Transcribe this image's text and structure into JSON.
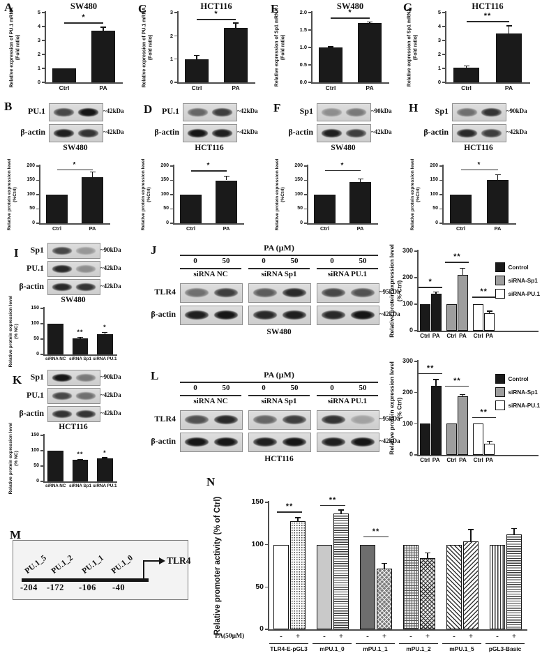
{
  "letters": {
    "A": "A",
    "B": "B",
    "C": "C",
    "D": "D",
    "E": "E",
    "F": "F",
    "G": "G",
    "H": "H",
    "I": "I",
    "J": "J",
    "K": "K",
    "L": "L",
    "M": "M",
    "N": "N"
  },
  "chart_data": [
    {
      "id": "A",
      "type": "bar",
      "title": "SW480",
      "ylabel": [
        "Relative expression of PU.1 mRNA",
        "(Fold ratio)"
      ],
      "ymax": 5,
      "yticks": [
        "0",
        "1",
        "2",
        "3",
        "4",
        "5"
      ],
      "categories": [
        "Ctrl",
        "PA"
      ],
      "values": [
        1.0,
        3.7
      ],
      "errors": [
        0,
        0.25
      ],
      "sig": {
        "text": "*",
        "y": 4.3
      }
    },
    {
      "id": "C",
      "type": "bar",
      "title": "HCT116",
      "ylabel": [
        "Relative expression of PU.1 mRNA",
        "(Fold ratio)"
      ],
      "ymax": 3,
      "yticks": [
        "0",
        "1",
        "2",
        "3"
      ],
      "categories": [
        "Ctrl",
        "PA"
      ],
      "values": [
        1.0,
        2.35
      ],
      "errors": [
        0.15,
        0.2
      ],
      "sig": {
        "text": "*",
        "y": 2.72
      }
    },
    {
      "id": "E",
      "type": "bar",
      "title": "SW480",
      "ylabel": [
        "Relative expression of Sp1 mRNA",
        "(Fold ratio)"
      ],
      "ymax": 2,
      "yticks": [
        "0.0",
        "0.5",
        "1.0",
        "1.5",
        "2.0"
      ],
      "categories": [
        "Ctrl",
        "PA"
      ],
      "values": [
        1.0,
        1.7
      ],
      "errors": [
        0.02,
        0.03
      ],
      "sig": {
        "text": "*",
        "y": 1.86
      }
    },
    {
      "id": "G",
      "type": "bar",
      "title": "HCT116",
      "ylabel": [
        "Relative expression of Sp1 mRNA",
        "(Fold ratio)"
      ],
      "ymax": 5,
      "yticks": [
        "0",
        "1",
        "2",
        "3",
        "4",
        "5"
      ],
      "categories": [
        "Ctrl",
        "PA"
      ],
      "values": [
        1.05,
        3.5
      ],
      "errors": [
        0.12,
        0.55
      ],
      "sig": {
        "text": "**",
        "y": 4.4
      }
    },
    {
      "id": "B",
      "type": "bar",
      "title": null,
      "ylabel": [
        "Relative protein expression level",
        "(%Ctrl)"
      ],
      "ymax": 200,
      "yticks": [
        "0",
        "50",
        "100",
        "150",
        "200"
      ],
      "categories": [
        "Ctrl",
        "PA"
      ],
      "values": [
        100,
        160
      ],
      "errors": [
        0,
        20
      ],
      "sig": {
        "text": "*",
        "y": 188
      }
    },
    {
      "id": "D",
      "type": "bar",
      "title": null,
      "ylabel": [
        "Relative protein expression level",
        "(%Ctrl)"
      ],
      "ymax": 200,
      "yticks": [
        "0",
        "50",
        "100",
        "150",
        "200"
      ],
      "categories": [
        "Ctrl",
        "PA"
      ],
      "values": [
        100,
        150
      ],
      "errors": [
        0,
        15
      ],
      "sig": {
        "text": "*",
        "y": 185
      }
    },
    {
      "id": "F",
      "type": "bar",
      "title": null,
      "ylabel": [
        "Relative protein expression level",
        "(%Ctrl)"
      ],
      "ymax": 200,
      "yticks": [
        "0",
        "50",
        "100",
        "150",
        "200"
      ],
      "categories": [
        "Ctrl",
        "PA"
      ],
      "values": [
        100,
        143
      ],
      "errors": [
        0,
        12
      ],
      "sig": {
        "text": "*",
        "y": 186
      }
    },
    {
      "id": "H",
      "type": "bar",
      "title": null,
      "ylabel": [
        "Relative protein expression level",
        "(%Ctrl)"
      ],
      "ymax": 200,
      "yticks": [
        "0",
        "50",
        "100",
        "150",
        "200"
      ],
      "categories": [
        "Ctrl",
        "PA"
      ],
      "values": [
        100,
        152
      ],
      "errors": [
        0,
        17
      ],
      "sig": {
        "text": "*",
        "y": 188
      }
    },
    {
      "id": "I",
      "type": "bar",
      "title": null,
      "ylabel": [
        "Relative protein expression level",
        "(% NC)"
      ],
      "ymax": 150,
      "yticks": [
        "0",
        "50",
        "100",
        "150"
      ],
      "categories": [
        "siRNA NC",
        "siRNA Sp1",
        "siRNA PU.1"
      ],
      "values": [
        100,
        52,
        67
      ],
      "errors": [
        0,
        4,
        5
      ],
      "sig": null,
      "stars": [
        {
          "i": 1,
          "text": "**"
        },
        {
          "i": 2,
          "text": "*"
        }
      ]
    },
    {
      "id": "K",
      "type": "bar",
      "title": null,
      "ylabel": [
        "Relative protein expression level",
        "(% NC)"
      ],
      "ymax": 150,
      "yticks": [
        "0",
        "50",
        "100",
        "150"
      ],
      "categories": [
        "siRNA NC",
        "siRNA Sp1",
        "siRNA PU.1"
      ],
      "values": [
        100,
        70,
        74
      ],
      "errors": [
        0,
        2,
        3
      ],
      "sig": null,
      "stars": [
        {
          "i": 1,
          "text": "**"
        },
        {
          "i": 2,
          "text": "*"
        }
      ]
    },
    {
      "id": "J",
      "type": "grouped_bar",
      "title": null,
      "ylabel": [
        "Relative protein expression level",
        "(% Ctrl)"
      ],
      "ymax": 300,
      "yticks": [
        "0",
        "100",
        "200",
        "300"
      ],
      "bar_labels": [
        "Ctrl",
        "PA"
      ],
      "legend": true,
      "series": [
        {
          "name": "Control",
          "color": "#1a1a1a",
          "values": [
            100,
            140
          ],
          "errors": [
            0,
            6
          ],
          "sig": {
            "text": "*",
            "y": 165
          }
        },
        {
          "name": "siRNA-Sp1",
          "color": "#9e9e9e",
          "values": [
            100,
            210
          ],
          "errors": [
            0,
            25
          ],
          "sig": {
            "text": "**",
            "y": 260
          }
        },
        {
          "name": "siRNA-PU.1",
          "color": "#ffffff",
          "values": [
            100,
            65
          ],
          "errors": [
            0,
            9
          ],
          "sig": {
            "text": "**",
            "y": 128
          }
        }
      ]
    },
    {
      "id": "L",
      "type": "grouped_bar",
      "title": null,
      "ylabel": [
        "Relative protein expression level",
        "(% Ctrl)"
      ],
      "ymax": 300,
      "yticks": [
        "0",
        "100",
        "200",
        "300"
      ],
      "bar_labels": [
        "Ctrl",
        "PA"
      ],
      "legend": true,
      "series": [
        {
          "name": "Control",
          "color": "#1a1a1a",
          "values": [
            100,
            222
          ],
          "errors": [
            0,
            20
          ],
          "sig": {
            "text": "**",
            "y": 262
          }
        },
        {
          "name": "siRNA-Sp1",
          "color": "#9e9e9e",
          "values": [
            100,
            188
          ],
          "errors": [
            0,
            6
          ],
          "sig": {
            "text": "**",
            "y": 222
          }
        },
        {
          "name": "siRNA-PU.1",
          "color": "#ffffff",
          "values": [
            100,
            35
          ],
          "errors": [
            0,
            9
          ],
          "sig": {
            "text": "**",
            "y": 122
          }
        }
      ]
    },
    {
      "id": "N",
      "type": "grouped_bar_patterned",
      "title": null,
      "ylabel": [
        "Relative promoter activity (% of Ctrl)"
      ],
      "ymax": 150,
      "yticks": [
        "0",
        "50",
        "100",
        "150"
      ],
      "xrow_label": "PA(50µM)",
      "bar_marks": [
        "-",
        "+"
      ],
      "groups": [
        {
          "label": "TLR4-E-pGL3",
          "values": [
            100,
            128
          ],
          "errors": [
            0,
            4
          ],
          "patterns": [
            "white",
            "dots"
          ],
          "sig": {
            "text": "**",
            "y": 139
          }
        },
        {
          "label": "mPU.1_0",
          "values": [
            100,
            137
          ],
          "errors": [
            0,
            4
          ],
          "patterns": [
            "lightgray",
            "hlines"
          ],
          "sig": {
            "text": "**",
            "y": 147
          }
        },
        {
          "label": "mPU.1_1",
          "values": [
            100,
            72
          ],
          "errors": [
            0,
            6
          ],
          "patterns": [
            "darkgray",
            "darkchecker"
          ],
          "sig": {
            "text": "**",
            "y": 110
          }
        },
        {
          "label": "mPU.1_2",
          "values": [
            100,
            84
          ],
          "errors": [
            0,
            6
          ],
          "patterns": [
            "grid",
            "checker"
          ],
          "sig": null
        },
        {
          "label": "mPU.1_5",
          "values": [
            100,
            104
          ],
          "errors": [
            0,
            14
          ],
          "patterns": [
            "diagl",
            "diagr"
          ],
          "sig": null
        },
        {
          "label": "pGL3-Basic",
          "values": [
            100,
            112
          ],
          "errors": [
            0,
            7
          ],
          "patterns": [
            "vlines",
            "hlines"
          ],
          "sig": null
        }
      ]
    }
  ],
  "blots": {
    "B": {
      "cell": "SW480",
      "rows": [
        {
          "protein": "PU.1",
          "size": "~42kDa",
          "lanes": [
            0.7,
            0.95
          ]
        },
        {
          "protein": "β-actin",
          "size": "~42kDa",
          "lanes": [
            0.9,
            0.8
          ]
        }
      ]
    },
    "D": {
      "cell": "HCT116",
      "rows": [
        {
          "protein": "PU.1",
          "size": "~42kDa",
          "lanes": [
            0.55,
            0.75
          ]
        },
        {
          "protein": "β-actin",
          "size": "~42kDa",
          "lanes": [
            0.95,
            0.9
          ]
        }
      ]
    },
    "F": {
      "cell": "SW480",
      "rows": [
        {
          "protein": "Sp1",
          "size": "~90kDa",
          "lanes": [
            0.35,
            0.45
          ]
        },
        {
          "protein": "β-actin",
          "size": "~42kDa",
          "lanes": [
            0.9,
            0.75
          ]
        }
      ]
    },
    "H": {
      "cell": "HCT116",
      "rows": [
        {
          "protein": "Sp1",
          "size": "~90kDa",
          "lanes": [
            0.5,
            0.8
          ]
        },
        {
          "protein": "β-actin",
          "size": "~42kDa",
          "lanes": [
            0.85,
            0.75
          ]
        }
      ]
    },
    "I": {
      "cell": "SW480",
      "rows": [
        {
          "protein": "Sp1",
          "size": "~90kDa",
          "lanes": [
            0.7,
            0.3
          ]
        },
        {
          "protein": "PU.1",
          "size": "~42kDa",
          "lanes": [
            0.85,
            0.35
          ]
        },
        {
          "protein": "β-actin",
          "size": "~42kDa",
          "lanes": [
            0.85,
            0.8
          ]
        }
      ]
    },
    "K": {
      "cell": "HCT116",
      "rows": [
        {
          "protein": "Sp1",
          "size": "~90kDa",
          "lanes": [
            0.95,
            0.45
          ]
        },
        {
          "protein": "PU.1",
          "size": "~42kDa",
          "lanes": [
            0.7,
            0.5
          ]
        },
        {
          "protein": "β-actin",
          "size": "~42kDa",
          "lanes": [
            0.8,
            0.8
          ]
        }
      ]
    }
  },
  "sirna_blots": {
    "J": {
      "cell": "SW480",
      "header": "PA (µM)",
      "doses": [
        "0",
        "50"
      ],
      "groups": [
        "siRNA NC",
        "siRNA Sp1",
        "siRNA PU.1"
      ],
      "rows": [
        {
          "protein": "TLR4",
          "size": "~95kDa",
          "lanes": [
            [
              0.5,
              0.75
            ],
            [
              0.6,
              0.85
            ],
            [
              0.7,
              0.65
            ]
          ]
        },
        {
          "protein": "β-actin",
          "size": "~42kDa",
          "lanes": [
            [
              0.9,
              0.95
            ],
            [
              0.85,
              0.9
            ],
            [
              0.85,
              0.95
            ]
          ]
        }
      ]
    },
    "L": {
      "cell": "HCT116",
      "header": "PA (µM)",
      "doses": [
        "0",
        "50"
      ],
      "groups": [
        "siRNA NC",
        "siRNA Sp1",
        "siRNA PU.1"
      ],
      "rows": [
        {
          "protein": "TLR4",
          "size": "~95kDa",
          "lanes": [
            [
              0.65,
              0.85
            ],
            [
              0.55,
              0.75
            ],
            [
              0.8,
              0.25
            ]
          ]
        },
        {
          "protein": "β-actin",
          "size": "~42kDa",
          "lanes": [
            [
              0.95,
              0.95
            ],
            [
              0.9,
              0.95
            ],
            [
              0.9,
              0.95
            ]
          ]
        }
      ]
    }
  },
  "panel_m": {
    "sites": [
      "PU.1_5",
      "PU.1_2",
      "PU.1_1",
      "PU.1_0"
    ],
    "positions": [
      "-204",
      "-172",
      "-106",
      "-40"
    ],
    "gene": "TLR4"
  },
  "colors": {
    "bar_black": "#1a1a1a",
    "bar_gray": "#9e9e9e",
    "bar_white": "#ffffff",
    "axis": "#4d4d4d"
  }
}
